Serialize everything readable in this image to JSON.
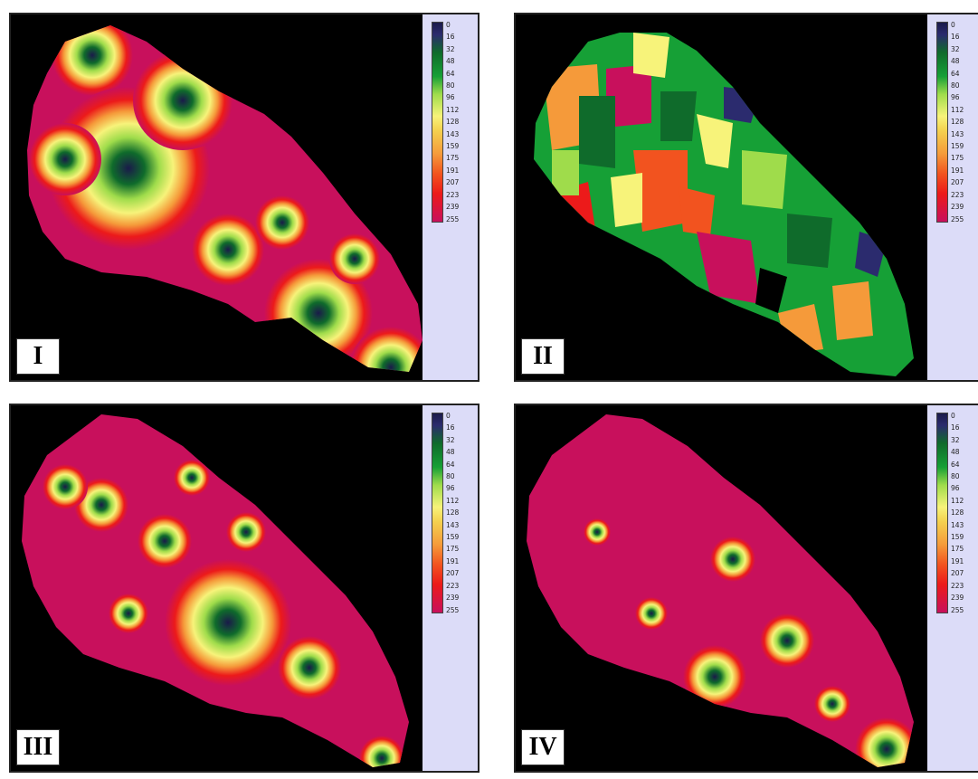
{
  "legend": {
    "values": [
      "0",
      "16",
      "32",
      "48",
      "64",
      "80",
      "96",
      "112",
      "128",
      "143",
      "159",
      "175",
      "191",
      "207",
      "223",
      "239",
      "255"
    ]
  },
  "panels": [
    {
      "label": "I"
    },
    {
      "label": "II"
    },
    {
      "label": "III"
    },
    {
      "label": "IV"
    }
  ]
}
